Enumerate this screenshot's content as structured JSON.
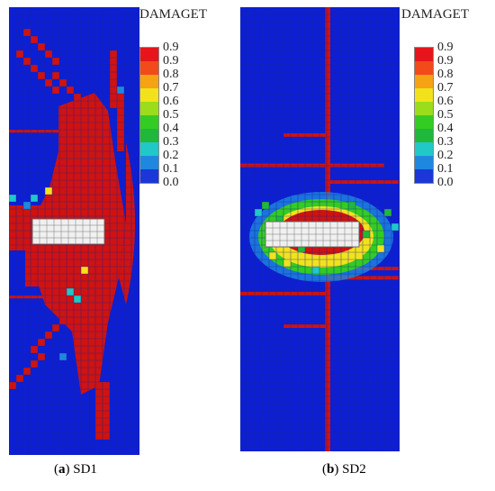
{
  "panels": [
    {
      "caption_letter": "a",
      "caption_text": "SD1",
      "legend_title": "DAMAGET"
    },
    {
      "caption_letter": "b",
      "caption_text": "SD2",
      "legend_title": "DAMAGET"
    }
  ],
  "legend_labels": [
    "0.9",
    "0.9",
    "0.8",
    "0.7",
    "0.6",
    "0.5",
    "0.4",
    "0.3",
    "0.2",
    "0.1",
    "0.0"
  ],
  "legend_colors": [
    "#e8141b",
    "#f24a1a",
    "#f5a214",
    "#f2e21c",
    "#9bdc1b",
    "#33cc22",
    "#20b83a",
    "#20c8c8",
    "#1e88e0",
    "#1b37d8"
  ],
  "colors": {
    "base": "#0d1fd4",
    "damage": "#cf1212",
    "mesh_line": "#1a2a8c",
    "void": "#f0f0f0"
  }
}
